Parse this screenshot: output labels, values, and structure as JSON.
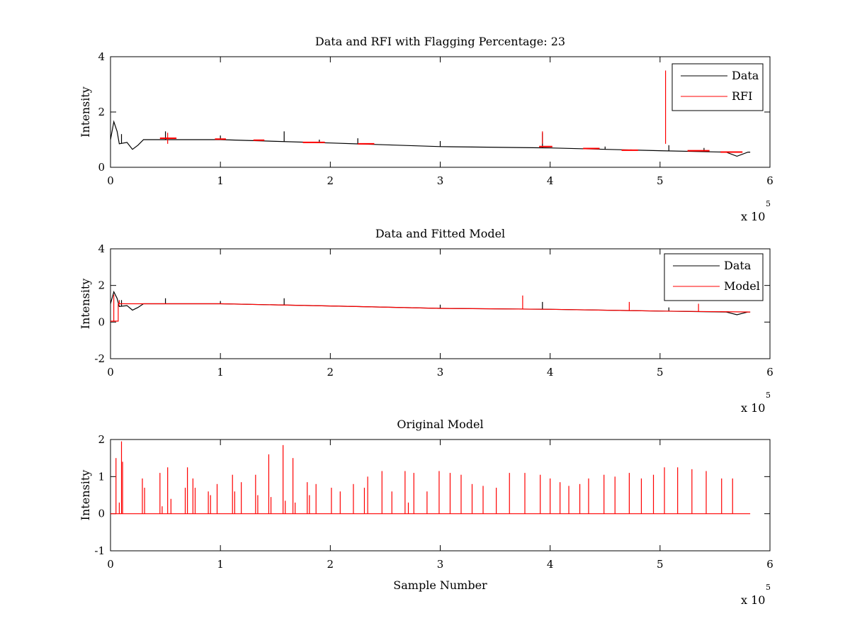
{
  "chart_data": [
    {
      "type": "line",
      "title": "Data and RFI with Flagging Percentage: 23",
      "xlabel": "",
      "ylabel": "Intensity",
      "xlim": [
        0,
        600000
      ],
      "ylim": [
        0,
        4
      ],
      "xticks": [
        0,
        1,
        2,
        3,
        4,
        5,
        6
      ],
      "yticks": [
        0,
        2,
        4
      ],
      "x_multiplier": "x 10",
      "x_multiplier_exp": "5",
      "legend": {
        "position": "top-right",
        "entries": [
          "Data",
          "RFI"
        ]
      },
      "series": [
        {
          "name": "Data",
          "color": "#000000",
          "baseline": [
            [
              0,
              1.0
            ],
            [
              3000,
              1.65
            ],
            [
              6000,
              1.3
            ],
            [
              8000,
              0.85
            ],
            [
              15000,
              0.9
            ],
            [
              20000,
              0.65
            ],
            [
              25000,
              0.8
            ],
            [
              30000,
              1.0
            ],
            [
              100000,
              1.0
            ],
            [
              200000,
              0.88
            ],
            [
              300000,
              0.75
            ],
            [
              400000,
              0.7
            ],
            [
              500000,
              0.6
            ],
            [
              560000,
              0.55
            ],
            [
              570000,
              0.4
            ],
            [
              580000,
              0.55
            ],
            [
              582000,
              0.55
            ]
          ],
          "spikes": [
            [
              10000,
              1.2
            ],
            [
              50000,
              1.3
            ],
            [
              100000,
              1.15
            ],
            [
              158000,
              1.3
            ],
            [
              190000,
              1.0
            ],
            [
              225000,
              1.05
            ],
            [
              300000,
              0.95
            ],
            [
              393000,
              1.25
            ],
            [
              450000,
              0.75
            ],
            [
              508000,
              0.8
            ],
            [
              540000,
              0.7
            ]
          ]
        },
        {
          "name": "RFI",
          "color": "#ff0000",
          "segments": [
            [
              45000,
              60000,
              1.05
            ],
            [
              95000,
              105000,
              1.02
            ],
            [
              130000,
              140000,
              0.98
            ],
            [
              175000,
              195000,
              0.9
            ],
            [
              225000,
              240000,
              0.85
            ],
            [
              390000,
              402000,
              0.75
            ],
            [
              430000,
              445000,
              0.68
            ],
            [
              465000,
              480000,
              0.62
            ],
            [
              525000,
              545000,
              0.6
            ],
            [
              555000,
              575000,
              0.55
            ]
          ],
          "spikes": [
            [
              505000,
              3.5
            ],
            [
              393000,
              1.3
            ],
            [
              52000,
              1.25
            ]
          ]
        }
      ]
    },
    {
      "type": "line",
      "title": "Data and Fitted Model",
      "xlabel": "",
      "ylabel": "Intensity",
      "xlim": [
        0,
        600000
      ],
      "ylim": [
        -2,
        4
      ],
      "xticks": [
        0,
        1,
        2,
        3,
        4,
        5,
        6
      ],
      "yticks": [
        -2,
        0,
        2,
        4
      ],
      "x_multiplier": "x 10",
      "x_multiplier_exp": "5",
      "legend": {
        "position": "top-right",
        "entries": [
          "Data",
          "Model"
        ]
      },
      "series": [
        {
          "name": "Data",
          "color": "#000000",
          "baseline": [
            [
              0,
              1.0
            ],
            [
              3000,
              1.65
            ],
            [
              6000,
              1.3
            ],
            [
              8000,
              0.85
            ],
            [
              15000,
              0.9
            ],
            [
              20000,
              0.65
            ],
            [
              25000,
              0.8
            ],
            [
              30000,
              1.0
            ],
            [
              100000,
              1.0
            ],
            [
              200000,
              0.88
            ],
            [
              300000,
              0.75
            ],
            [
              400000,
              0.7
            ],
            [
              500000,
              0.6
            ],
            [
              560000,
              0.55
            ],
            [
              570000,
              0.4
            ],
            [
              580000,
              0.55
            ],
            [
              582000,
              0.55
            ]
          ],
          "spikes": [
            [
              10000,
              1.2
            ],
            [
              50000,
              1.3
            ],
            [
              100000,
              1.15
            ],
            [
              158000,
              1.3
            ],
            [
              300000,
              0.95
            ],
            [
              393000,
              1.1
            ],
            [
              508000,
              0.8
            ]
          ]
        },
        {
          "name": "Model",
          "color": "#ff0000",
          "baseline": [
            [
              0,
              0.05
            ],
            [
              7000,
              0.05
            ],
            [
              7000,
              1.0
            ],
            [
              10000,
              1.0
            ],
            [
              100000,
              1.0
            ],
            [
              200000,
              0.88
            ],
            [
              300000,
              0.75
            ],
            [
              400000,
              0.7
            ],
            [
              500000,
              0.6
            ],
            [
              582000,
              0.55
            ]
          ],
          "spikes": [
            [
              3000,
              1.5
            ],
            [
              8000,
              1.2
            ],
            [
              375000,
              1.45
            ],
            [
              472000,
              1.1
            ],
            [
              535000,
              1.0
            ]
          ]
        }
      ]
    },
    {
      "type": "line",
      "title": "Original Model",
      "xlabel": "Sample Number",
      "ylabel": "Intensity",
      "xlim": [
        0,
        600000
      ],
      "ylim": [
        -1,
        2
      ],
      "xticks": [
        0,
        1,
        2,
        3,
        4,
        5,
        6
      ],
      "yticks": [
        -1,
        0,
        1,
        2
      ],
      "x_multiplier": "x 10",
      "x_multiplier_exp": "5",
      "series": [
        {
          "name": "Original Model",
          "color": "#ff0000",
          "baseline": [
            [
              0,
              0
            ],
            [
              582000,
              0
            ]
          ],
          "spikes": [
            [
              5000,
              1.5
            ],
            [
              8000,
              0.3
            ],
            [
              10000,
              1.95
            ],
            [
              11000,
              1.4
            ],
            [
              29000,
              0.95
            ],
            [
              31000,
              0.7
            ],
            [
              45000,
              1.1
            ],
            [
              47000,
              0.2
            ],
            [
              52000,
              1.25
            ],
            [
              55000,
              0.4
            ],
            [
              68000,
              0.7
            ],
            [
              70000,
              1.25
            ],
            [
              75000,
              0.95
            ],
            [
              77000,
              0.7
            ],
            [
              89000,
              0.6
            ],
            [
              91000,
              0.5
            ],
            [
              97000,
              0.8
            ],
            [
              111000,
              1.05
            ],
            [
              113000,
              0.6
            ],
            [
              119000,
              0.85
            ],
            [
              132000,
              1.05
            ],
            [
              134000,
              0.5
            ],
            [
              144000,
              1.6
            ],
            [
              146000,
              0.45
            ],
            [
              157000,
              1.85
            ],
            [
              159000,
              0.35
            ],
            [
              166000,
              1.5
            ],
            [
              168000,
              0.3
            ],
            [
              179000,
              0.85
            ],
            [
              181000,
              0.5
            ],
            [
              187000,
              0.8
            ],
            [
              201000,
              0.7
            ],
            [
              209000,
              0.6
            ],
            [
              221000,
              0.8
            ],
            [
              231000,
              0.7
            ],
            [
              234000,
              1.0
            ],
            [
              247000,
              1.15
            ],
            [
              256000,
              0.6
            ],
            [
              268000,
              1.15
            ],
            [
              271000,
              0.3
            ],
            [
              276000,
              1.1
            ],
            [
              288000,
              0.6
            ],
            [
              299000,
              1.15
            ],
            [
              309000,
              1.1
            ],
            [
              319000,
              1.05
            ],
            [
              329000,
              0.8
            ],
            [
              339000,
              0.75
            ],
            [
              351000,
              0.7
            ],
            [
              363000,
              1.1
            ],
            [
              377000,
              1.1
            ],
            [
              391000,
              1.05
            ],
            [
              400000,
              0.95
            ],
            [
              409000,
              0.85
            ],
            [
              417000,
              0.75
            ],
            [
              427000,
              0.8
            ],
            [
              435000,
              0.95
            ],
            [
              449000,
              1.05
            ],
            [
              459000,
              1.0
            ],
            [
              472000,
              1.1
            ],
            [
              483000,
              0.95
            ],
            [
              494000,
              1.05
            ],
            [
              504000,
              1.25
            ],
            [
              516000,
              1.25
            ],
            [
              529000,
              1.2
            ],
            [
              542000,
              1.15
            ],
            [
              556000,
              0.95
            ],
            [
              566000,
              0.95
            ]
          ]
        }
      ]
    }
  ]
}
